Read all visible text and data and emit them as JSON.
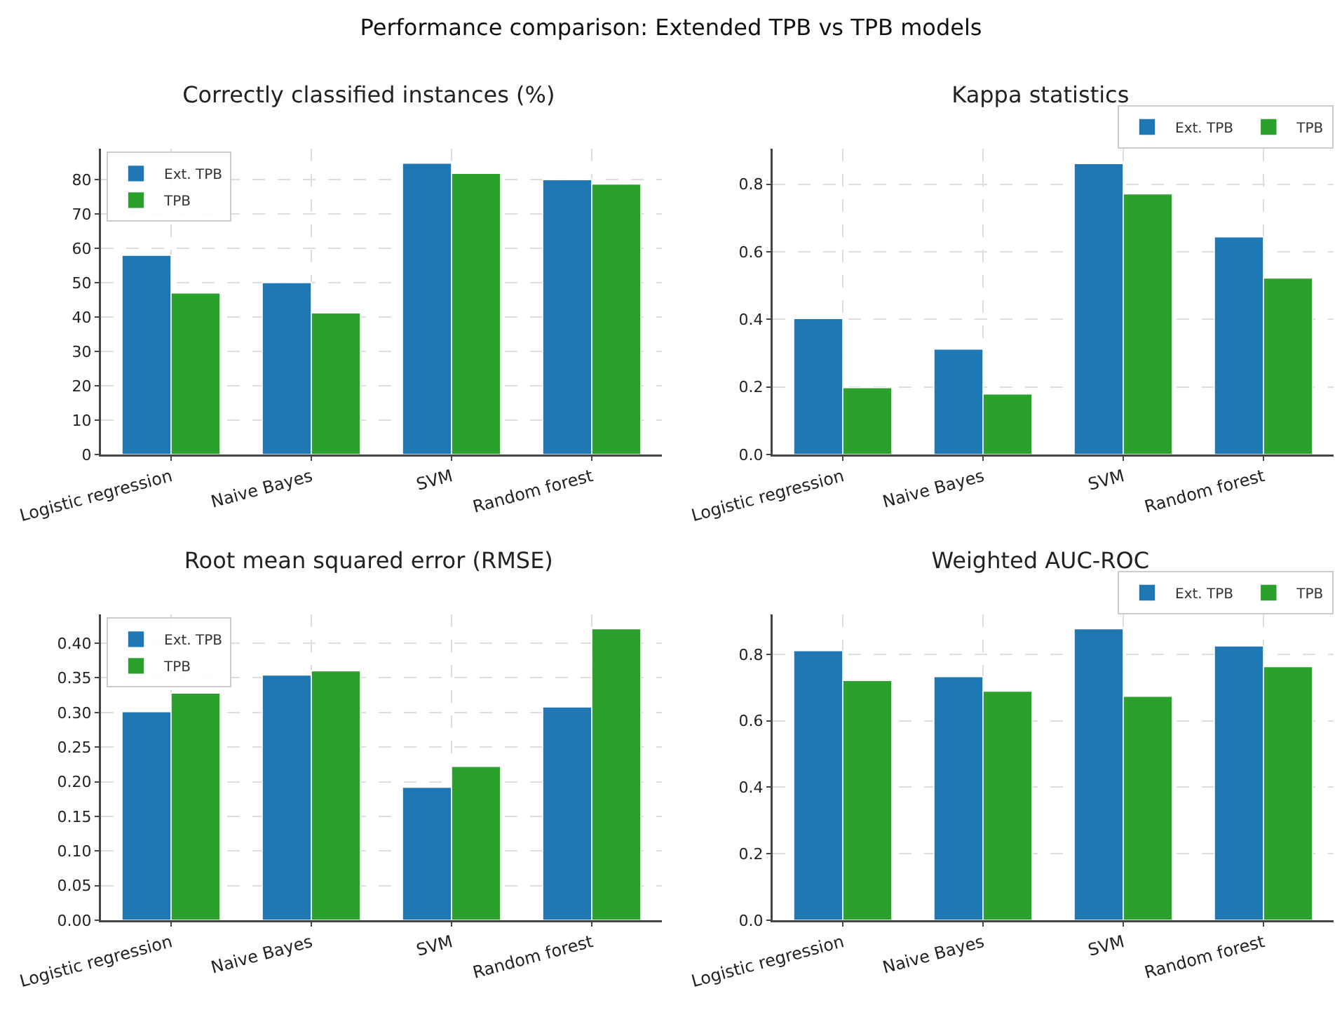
{
  "chart_data": [
    {
      "type": "bar",
      "title": "Correctly classified instances (%)",
      "annotations": [
        "Performance comparison: Extended TPB vs TPB models"
      ],
      "categories": [
        "Logistic regression",
        "Naive Bayes",
        "SVM",
        "Random forest"
      ],
      "series": [
        {
          "name": "Ext. TPB",
          "color": "#1f77b4",
          "values": [
            58,
            50,
            84.8,
            80
          ]
        },
        {
          "name": "TPB",
          "color": "#2ca02c",
          "values": [
            47,
            41.2,
            81.8,
            78.7
          ]
        }
      ],
      "ylim": [
        0,
        89
      ],
      "yticks": [
        0,
        10,
        20,
        30,
        40,
        50,
        60,
        70,
        80
      ],
      "grid": true,
      "legend": "top left"
    },
    {
      "type": "bar",
      "title": "Kappa statistics",
      "categories": [
        "Logistic regression",
        "Naive Bayes",
        "SVM",
        "Random forest"
      ],
      "series": [
        {
          "name": "Ext. TPB",
          "color": "#1f77b4",
          "values": [
            0.402,
            0.312,
            0.861,
            0.644
          ]
        },
        {
          "name": "TPB",
          "color": "#2ca02c",
          "values": [
            0.198,
            0.179,
            0.771,
            0.522
          ]
        }
      ],
      "ylim": [
        0,
        0.905
      ],
      "yticks": [
        {
          "value": 0,
          "label": "0.0"
        },
        0.2,
        0.4,
        0.6,
        0.8
      ],
      "grid": true,
      "legend": "top right"
    },
    {
      "type": "bar",
      "title": "Root mean squared error (RMSE)",
      "categories": [
        "Logistic regression",
        "Naive Bayes",
        "SVM",
        "Random forest"
      ],
      "series": [
        {
          "name": "Ext. TPB",
          "color": "#1f77b4",
          "values": [
            0.301,
            0.354,
            0.192,
            0.308
          ]
        },
        {
          "name": "TPB",
          "color": "#2ca02c",
          "values": [
            0.328,
            0.36,
            0.222,
            0.421
          ]
        }
      ],
      "ylim": [
        0,
        0.4416
      ],
      "yticks": [
        {
          "value": 0,
          "label": "0.00"
        },
        0.05,
        {
          "value": 0.1,
          "label": "0.10"
        },
        0.15,
        {
          "value": 0.2,
          "label": "0.20"
        },
        0.25,
        {
          "value": 0.3,
          "label": "0.30"
        },
        0.35,
        {
          "value": 0.4,
          "label": "0.40"
        }
      ],
      "grid": true,
      "legend": "top left"
    },
    {
      "type": "bar",
      "title": "Weighted AUC-ROC",
      "categories": [
        "Logistic regression",
        "Naive Bayes",
        "SVM",
        "Random forest"
      ],
      "series": [
        {
          "name": "Ext. TPB",
          "color": "#1f77b4",
          "values": [
            0.811,
            0.733,
            0.877,
            0.825
          ]
        },
        {
          "name": "TPB",
          "color": "#2ca02c",
          "values": [
            0.721,
            0.689,
            0.674,
            0.763
          ]
        }
      ],
      "ylim": [
        0,
        0.92
      ],
      "yticks": [
        {
          "value": 0,
          "label": "0.0"
        },
        0.2,
        0.4,
        0.6,
        0.8
      ],
      "grid": true,
      "legend": "top right"
    }
  ]
}
